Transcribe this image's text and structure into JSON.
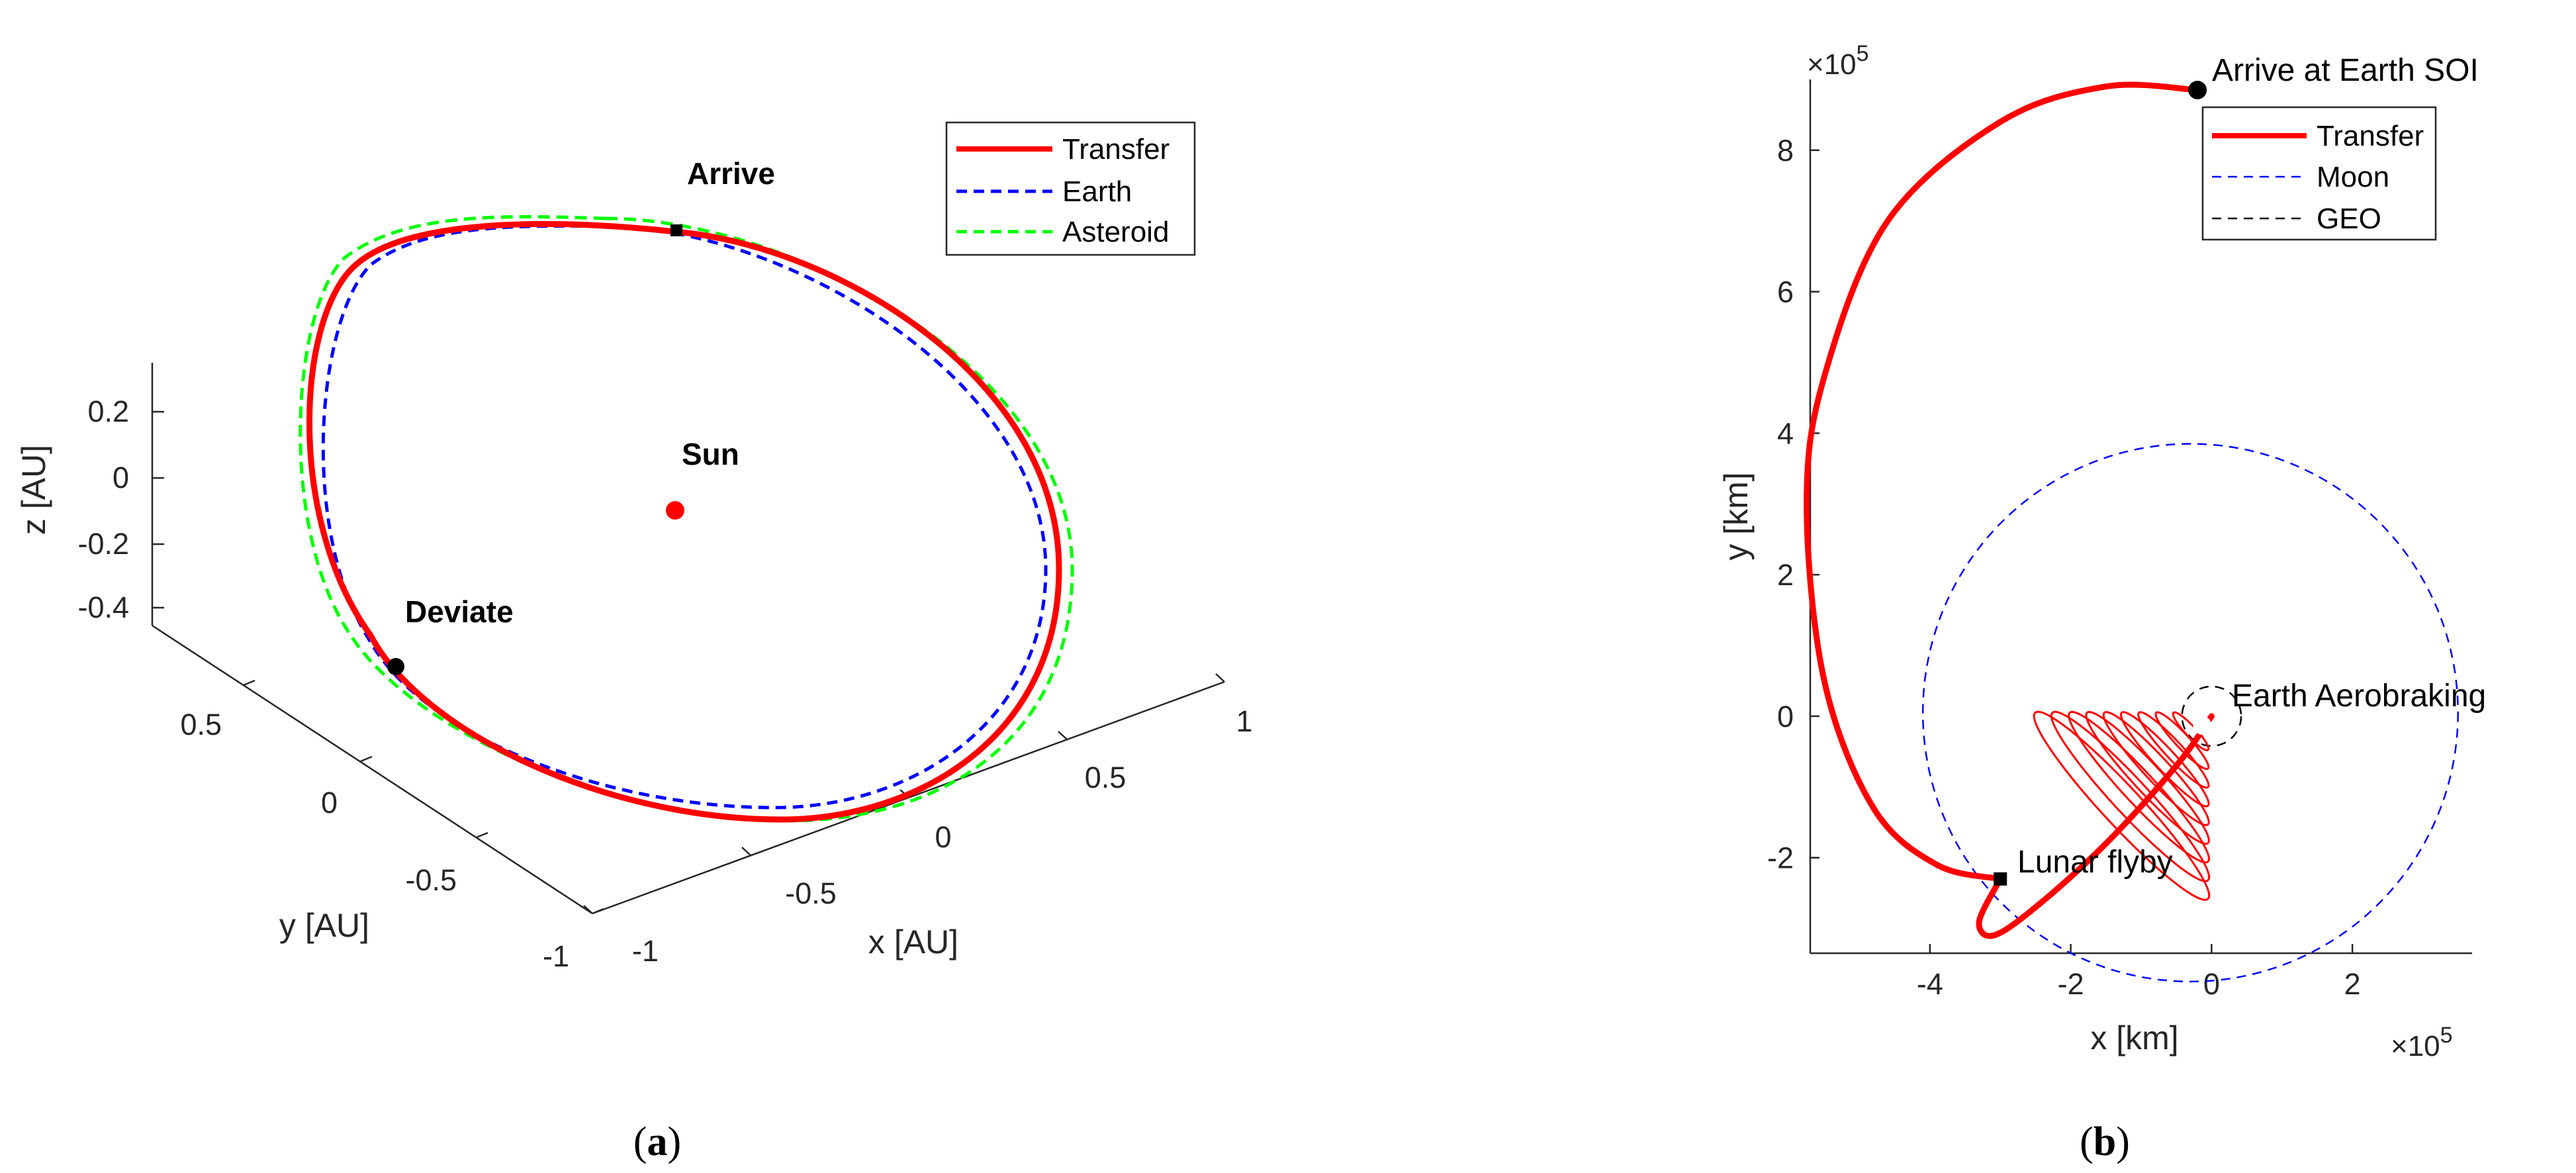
{
  "chart_data": [
    {
      "type": "line",
      "panel_label": "a",
      "projection": "3d",
      "xlabel": "x [AU]",
      "ylabel": "y [AU]",
      "zlabel": "z [AU]",
      "xticks": [
        "-1",
        "-0.5",
        "0",
        "0.5",
        "1"
      ],
      "yticks": [
        "-1",
        "-0.5",
        "0",
        "0.5"
      ],
      "zticks": [
        "0.2",
        "0",
        "-0.2",
        "-0.4"
      ],
      "xlim": [
        -1,
        1
      ],
      "ylim": [
        -1,
        0.7
      ],
      "zlim": [
        -0.45,
        0.35
      ],
      "legend": {
        "placement": "top-right",
        "entries": [
          "Transfer",
          "Earth",
          "Asteroid"
        ]
      },
      "series": [
        {
          "name": "Transfer",
          "color": "#ff0000",
          "style": "solid",
          "orbit": {
            "a": 1.04,
            "e": 0.03,
            "inclination_deg": 0
          }
        },
        {
          "name": "Earth",
          "color": "#0000ff",
          "style": "dashed",
          "orbit": {
            "a": 1.0,
            "e": 0.0167,
            "inclination_deg": 0
          }
        },
        {
          "name": "Asteroid",
          "color": "#00ff00",
          "style": "dashed",
          "orbit": {
            "a": 1.07,
            "e": 0.035,
            "inclination_deg": 0
          }
        }
      ],
      "annotations": [
        {
          "text": "Arrive",
          "marker": "square"
        },
        {
          "text": "Sun",
          "marker": "red-dot"
        },
        {
          "text": "Deviate",
          "marker": "black-dot"
        }
      ]
    },
    {
      "type": "line",
      "panel_label": "b",
      "xlabel": "x [km]",
      "ylabel": "y [km]",
      "x_exponent": "×10",
      "y_exponent": "×10",
      "exponent_power": "5",
      "xticks": [
        "-4",
        "-2",
        "0",
        "2"
      ],
      "yticks": [
        "-2",
        "0",
        "2",
        "4",
        "6",
        "8"
      ],
      "xlim": [
        -5.7,
        3.7
      ],
      "ylim": [
        -3.35,
        9.0
      ],
      "legend": {
        "placement": "top-right",
        "entries": [
          "Transfer",
          "Moon",
          "GEO"
        ]
      },
      "series": [
        {
          "name": "Transfer",
          "color": "#ff0000",
          "style": "solid",
          "points": [
            [
              -0.2,
              8.85
            ],
            [
              -1.5,
              8.9
            ],
            [
              -3.0,
              8.4
            ],
            [
              -4.6,
              7.0
            ],
            [
              -5.5,
              4.8
            ],
            [
              -5.75,
              3.0
            ],
            [
              -5.5,
              0.5
            ],
            [
              -4.8,
              -1.3
            ],
            [
              -3.9,
              -2.1
            ],
            [
              -3.0,
              -2.3
            ]
          ]
        },
        {
          "name": "Transfer (lunar loop)",
          "color": "#ff0000",
          "style": "solid",
          "points": [
            [
              -3.0,
              -2.3
            ],
            [
              -3.3,
              -2.9
            ],
            [
              -3.1,
              -3.1
            ],
            [
              -2.5,
              -2.7
            ],
            [
              -1.5,
              -1.8
            ],
            [
              -0.5,
              -0.7
            ],
            [
              0.0,
              0.0
            ]
          ]
        },
        {
          "name": "Moon",
          "color": "#0000ff",
          "style": "dashed",
          "circle": {
            "cx": -0.3,
            "cy": 0.05,
            "r": 3.8
          }
        },
        {
          "name": "GEO",
          "color": "#000000",
          "style": "dashed",
          "circle": {
            "cx": 0.0,
            "cy": 0.0,
            "r": 0.42
          }
        }
      ],
      "aerobraking_ellipses": 9,
      "annotations": [
        {
          "text": "Arrive at Earth SOI",
          "marker": "black-dot",
          "x": -0.2,
          "y": 8.85
        },
        {
          "text": "Earth Aerobraking",
          "x": 0.0,
          "y": 0.0
        },
        {
          "text": "Lunar flyby",
          "marker": "square",
          "x": -3.0,
          "y": -2.3
        }
      ]
    }
  ],
  "panel_a": {
    "legend": [
      "Transfer",
      "Earth",
      "Asteroid"
    ],
    "annotations": {
      "arrive": "Arrive",
      "sun": "Sun",
      "deviate": "Deviate"
    },
    "axis_labels": {
      "x": "x [AU]",
      "y": "y [AU]",
      "z": "z [AU]"
    },
    "xticks": [
      "-1",
      "-0.5",
      "0",
      "0.5",
      "1"
    ],
    "yticks": [
      "-1",
      "-0.5",
      "0",
      "0.5"
    ],
    "zticks": [
      "0.2",
      "0",
      "-0.2",
      "-0.4"
    ],
    "caption_letter": "a"
  },
  "panel_b": {
    "legend": [
      "Transfer",
      "Moon",
      "GEO"
    ],
    "annotations": {
      "arrive": "Arrive at Earth SOI",
      "aero": "Earth Aerobraking",
      "flyby": "Lunar flyby"
    },
    "axis_labels": {
      "x": "x [km]",
      "y": "y [km]"
    },
    "exponent_base": "×10",
    "exponent_power": "5",
    "xticks": [
      "-4",
      "-2",
      "0",
      "2"
    ],
    "yticks": [
      "-2",
      "0",
      "2",
      "4",
      "6",
      "8"
    ],
    "caption_letter": "b"
  },
  "colors": {
    "transfer": "#ff0000",
    "earth": "#0000ff",
    "asteroid": "#00ff00",
    "geo": "#000000"
  }
}
